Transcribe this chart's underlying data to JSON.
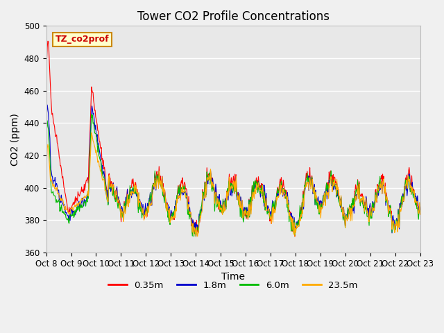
{
  "title": "Tower CO2 Profile Concentrations",
  "xlabel": "Time",
  "ylabel": "CO2 (ppm)",
  "ylim": [
    360,
    500
  ],
  "yticks": [
    360,
    380,
    400,
    420,
    440,
    460,
    480,
    500
  ],
  "label_box_text": "TZ_co2prof",
  "series": [
    "0.35m",
    "1.8m",
    "6.0m",
    "23.5m"
  ],
  "colors": [
    "#ff0000",
    "#0000cc",
    "#00bb00",
    "#ffaa00"
  ],
  "plot_bg_color": "#e8e8e8",
  "fig_bg_color": "#f0f0f0",
  "n_days": 15,
  "n_points_per_day": 48,
  "x_tick_labels": [
    "Oct 8",
    "Oct 9",
    "Oct 10",
    "Oct 11",
    "Oct 12",
    "Oct 13",
    "Oct 14",
    "Oct 15",
    "Oct 16",
    "Oct 17",
    "Oct 18",
    "Oct 19",
    "Oct 20",
    "Oct 21",
    "Oct 22",
    "Oct 23"
  ],
  "title_fontsize": 12,
  "axis_fontsize": 10,
  "tick_fontsize": 8.5
}
